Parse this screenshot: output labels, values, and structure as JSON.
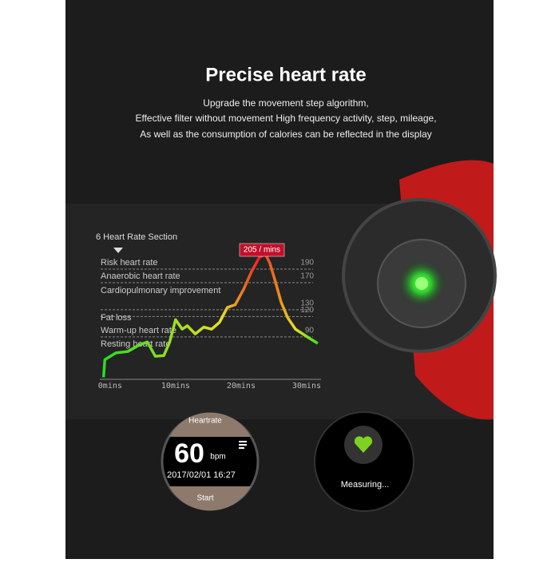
{
  "header": {
    "title": "Precise heart rate",
    "lines": [
      "Upgrade the movement step algorithm,",
      "Effective filter without movement High frequency activity, step, mileage,",
      "As well as the consumption of calories can be reflected in the display"
    ]
  },
  "chart_data": {
    "type": "line",
    "title": "6 Heart Rate Section",
    "zone_labels": [
      "Risk heart rate",
      "Anaerobic heart rate",
      "Cardiopulmonary improvement",
      "Fat loss",
      "Warm-up heart rate",
      "Resting heart rate"
    ],
    "annotation": "205 / mins",
    "x": [
      -1,
      -0.8,
      0.9,
      2.7,
      4.5,
      5.7,
      6.9,
      8.2,
      9.1,
      10,
      11,
      11.8,
      13,
      14.3,
      15.5,
      16.7,
      17.9,
      19.1,
      20.4,
      21.6,
      22.8,
      23.7,
      24.4,
      25.2,
      26.1,
      27.1,
      28.3,
      30.2,
      31.7
    ],
    "series": [
      {
        "name": "Heart rate",
        "values": [
          21,
          47,
          57,
          59,
          69,
          73,
          52,
          53,
          73,
          106,
          92,
          97,
          85,
          95,
          92,
          102,
          124,
          128,
          151,
          177,
          198,
          203,
          189,
          163,
          132,
          109,
          92,
          80,
          71
        ]
      }
    ],
    "xlim": [
      -1.2,
      32.2
    ],
    "ylim": [
      18,
      210
    ],
    "xticks": [
      {
        "value": 0,
        "label": "0mins"
      },
      {
        "value": 10,
        "label": "10mins"
      },
      {
        "value": 20,
        "label": "20mins"
      },
      {
        "value": 30,
        "label": "30mins"
      }
    ],
    "yticks": [
      190,
      170,
      130,
      120,
      90
    ]
  },
  "watch_left": {
    "title": "Heartrate",
    "value": "60",
    "unit": "bpm",
    "datetime": "2017/02/01  16:27",
    "button": "Start"
  },
  "watch_right": {
    "status": "Measuring..."
  }
}
